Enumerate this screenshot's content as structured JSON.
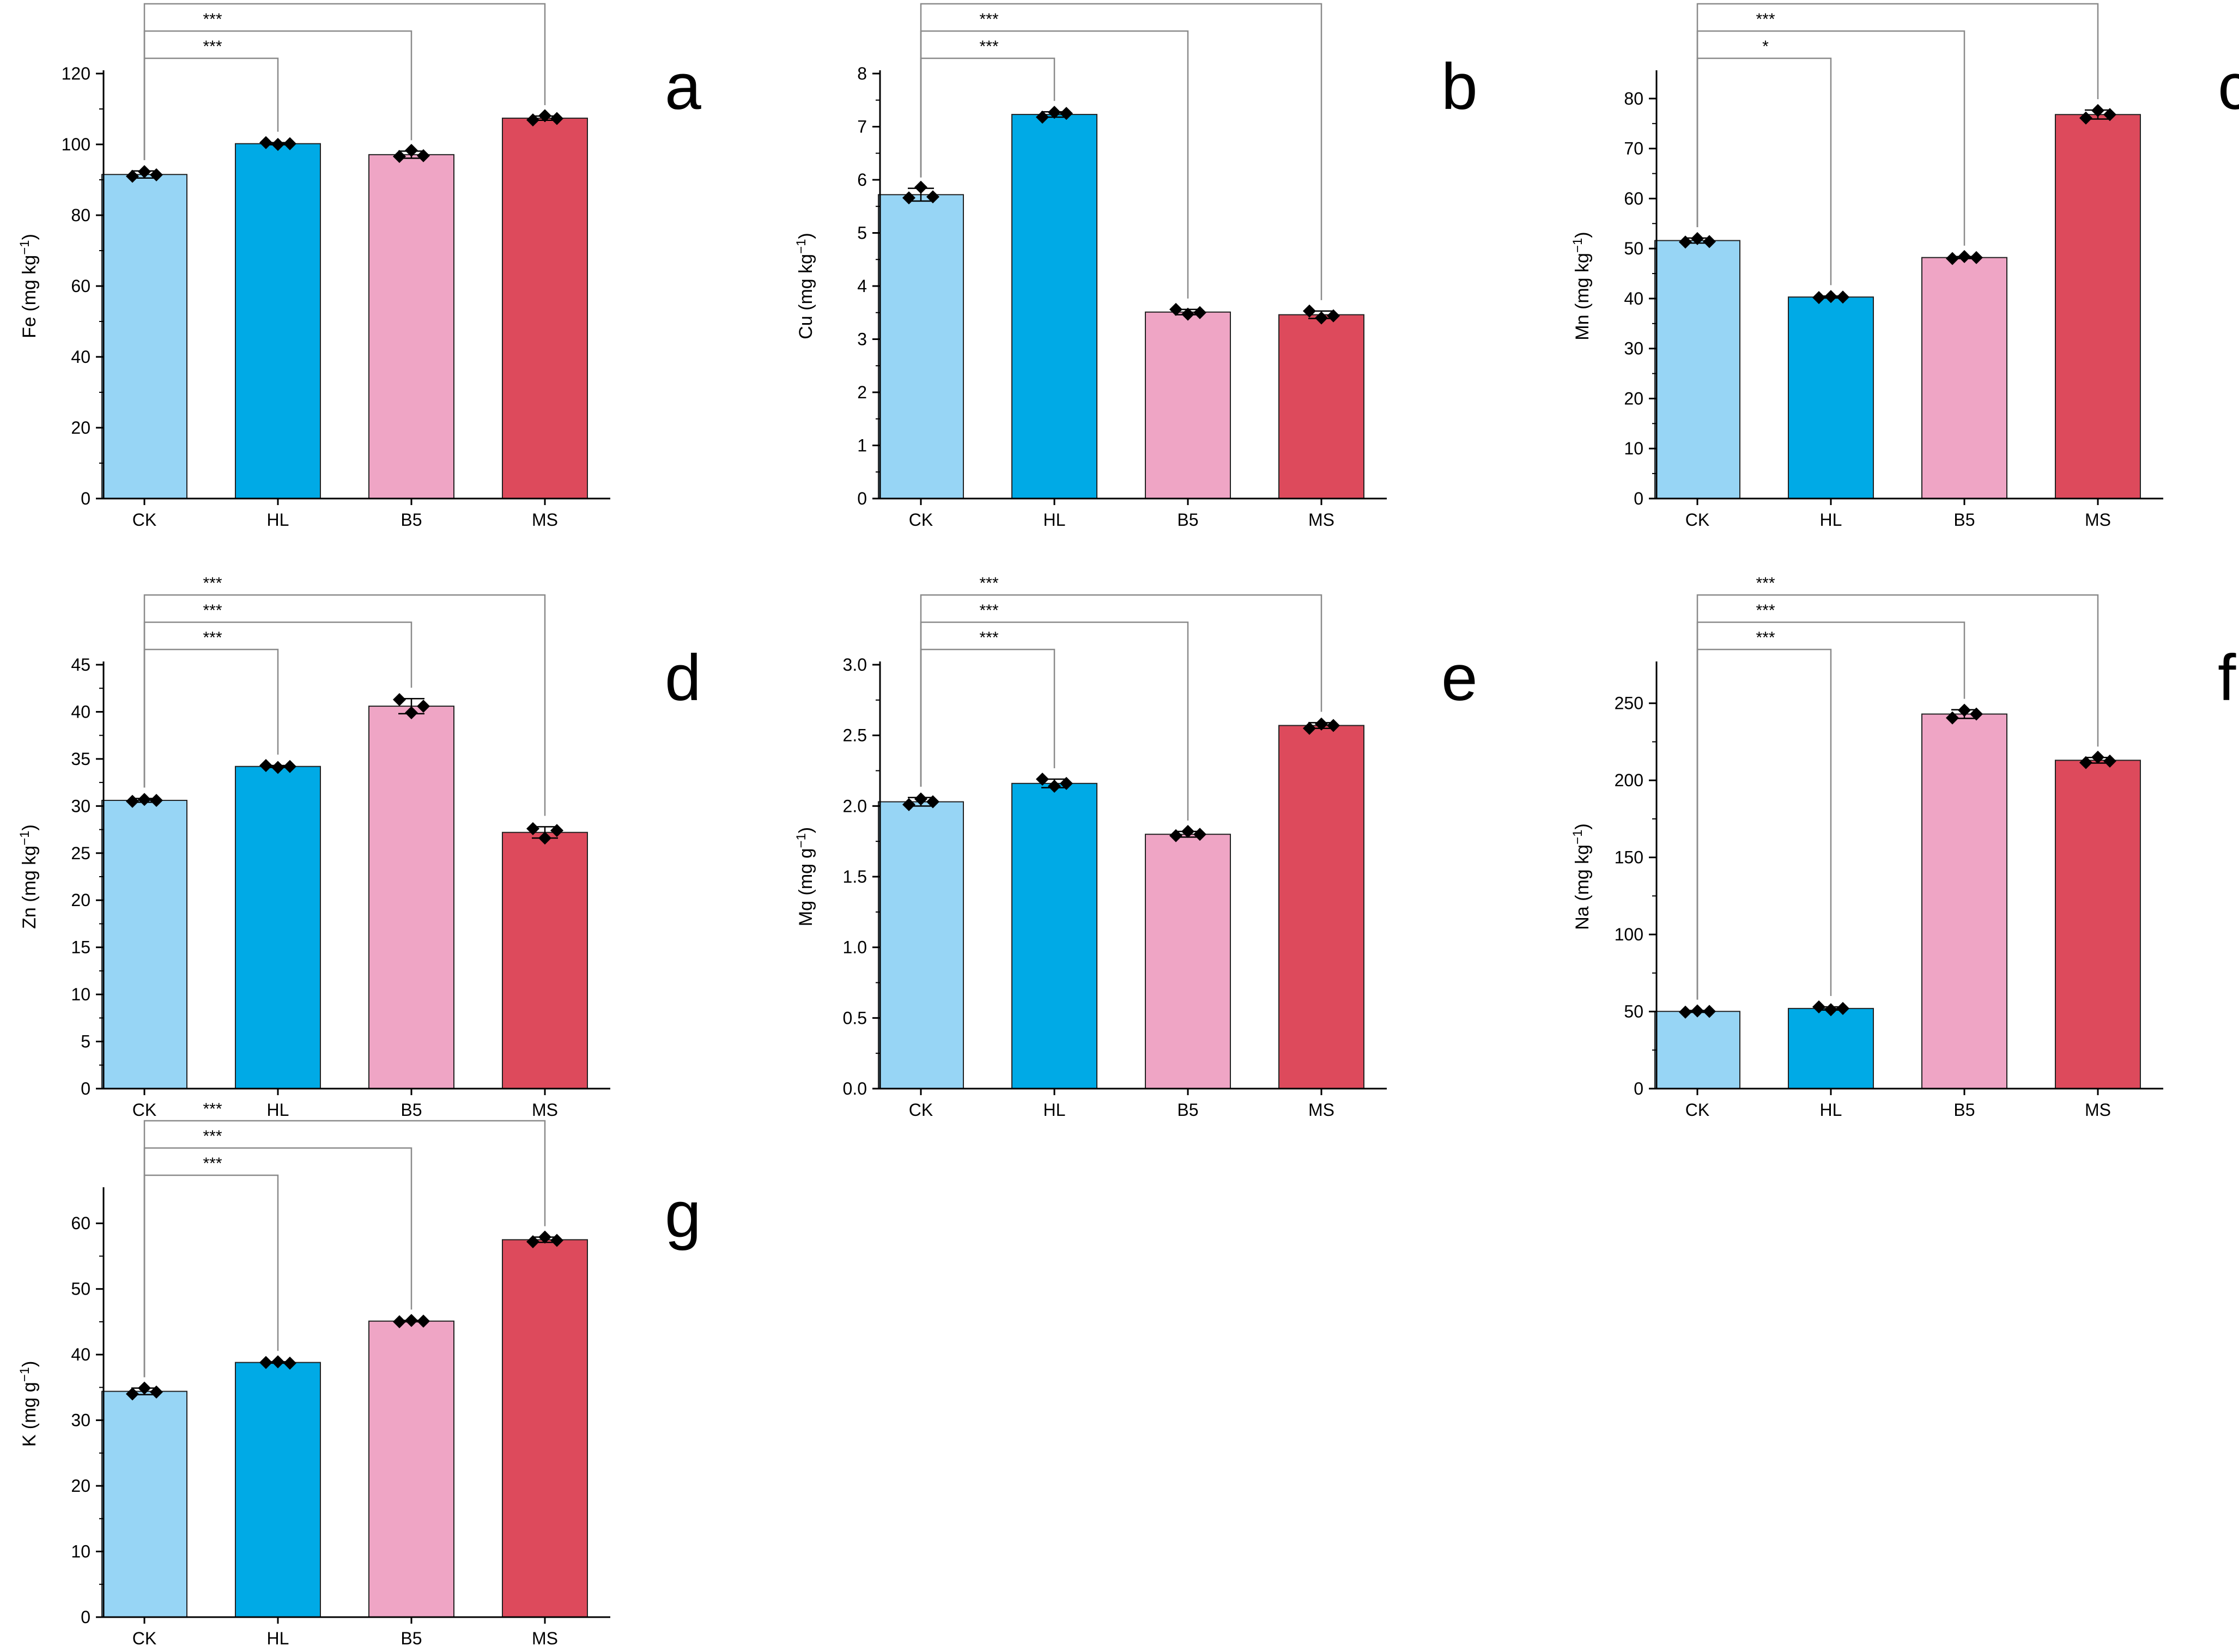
{
  "colors": {
    "CK": "#97d5f5",
    "HL": "#00aae6",
    "B5": "#efa5c5",
    "MS": "#dd4a5c",
    "axis": "#000000",
    "bracket": "#8a8a8a"
  },
  "point_marker": "diamond",
  "chart_data": [
    {
      "type": "bar",
      "panel": "a",
      "ylabel": "Fe (mg kg",
      "ylabel_sup": "−1",
      "ylabel_end": ")",
      "categories": [
        "CK",
        "HL",
        "B5",
        "MS"
      ],
      "values": [
        91.5,
        100.2,
        97.1,
        107.4
      ],
      "errors": [
        1.0,
        0.3,
        1.0,
        0.6
      ],
      "points": [
        [
          91.0,
          92.3,
          91.4
        ],
        [
          100.5,
          100.0,
          100.2
        ],
        [
          96.6,
          98.3,
          96.8
        ],
        [
          106.9,
          108.1,
          107.3
        ]
      ],
      "ylim": [
        0,
        120
      ],
      "yticks": [
        "0",
        "20",
        "40",
        "60",
        "80",
        "100",
        "120"
      ],
      "brackets": [
        {
          "from": "CK",
          "to": "HL",
          "label": "***"
        },
        {
          "from": "CK",
          "to": "B5",
          "label": "***"
        },
        {
          "from": "CK",
          "to": "MS",
          "label": "***"
        }
      ]
    },
    {
      "type": "bar",
      "panel": "b",
      "ylabel": "Cu (mg kg",
      "ylabel_sup": "−1",
      "ylabel_end": ")",
      "categories": [
        "CK",
        "HL",
        "B5",
        "MS"
      ],
      "values": [
        5.72,
        7.23,
        3.51,
        3.46
      ],
      "errors": [
        0.12,
        0.05,
        0.05,
        0.07
      ],
      "points": [
        [
          5.66,
          5.86,
          5.68
        ],
        [
          7.18,
          7.27,
          7.25
        ],
        [
          3.56,
          3.47,
          3.5
        ],
        [
          3.53,
          3.4,
          3.44
        ]
      ],
      "ylim": [
        0,
        8
      ],
      "yticks": [
        "0",
        "1",
        "2",
        "3",
        "4",
        "5",
        "6",
        "7",
        "8"
      ],
      "brackets": [
        {
          "from": "CK",
          "to": "HL",
          "label": "***"
        },
        {
          "from": "CK",
          "to": "B5",
          "label": "***"
        },
        {
          "from": "CK",
          "to": "MS",
          "label": "***"
        }
      ]
    },
    {
      "type": "bar",
      "panel": "c",
      "ylabel": "Mn (mg kg",
      "ylabel_sup": "−1",
      "ylabel_end": ")",
      "categories": [
        "CK",
        "HL",
        "B5",
        "MS"
      ],
      "values": [
        51.6,
        40.3,
        48.2,
        76.8
      ],
      "errors": [
        0.5,
        0.2,
        0.2,
        0.9
      ],
      "points": [
        [
          51.3,
          52.0,
          51.4
        ],
        [
          40.2,
          40.4,
          40.3
        ],
        [
          48.0,
          48.4,
          48.2
        ],
        [
          76.1,
          77.6,
          76.8
        ]
      ],
      "ylim": [
        0,
        85
      ],
      "yticks": [
        "0",
        "10",
        "20",
        "30",
        "40",
        "50",
        "60",
        "70",
        "80"
      ],
      "brackets": [
        {
          "from": "CK",
          "to": "HL",
          "label": "*"
        },
        {
          "from": "CK",
          "to": "B5",
          "label": "***"
        },
        {
          "from": "CK",
          "to": "MS",
          "label": "***"
        }
      ]
    },
    {
      "type": "bar",
      "panel": "d",
      "ylabel": "Zn (mg kg",
      "ylabel_sup": "−1",
      "ylabel_end": ")",
      "categories": [
        "CK",
        "HL",
        "B5",
        "MS"
      ],
      "values": [
        30.6,
        34.2,
        40.6,
        27.2
      ],
      "errors": [
        0.2,
        0.1,
        0.8,
        0.6
      ],
      "points": [
        [
          30.5,
          30.7,
          30.6
        ],
        [
          34.3,
          34.1,
          34.2
        ],
        [
          41.3,
          39.9,
          40.6
        ],
        [
          27.6,
          26.6,
          27.4
        ]
      ],
      "ylim": [
        0,
        45
      ],
      "yticks": [
        "0",
        "5",
        "10",
        "15",
        "20",
        "25",
        "30",
        "35",
        "40",
        "45"
      ],
      "brackets": [
        {
          "from": "CK",
          "to": "HL",
          "label": "***"
        },
        {
          "from": "CK",
          "to": "B5",
          "label": "***"
        },
        {
          "from": "CK",
          "to": "MS",
          "label": "***"
        }
      ]
    },
    {
      "type": "bar",
      "panel": "e",
      "ylabel": "Mg (mg g",
      "ylabel_sup": "−1",
      "ylabel_end": ")",
      "categories": [
        "CK",
        "HL",
        "B5",
        "MS"
      ],
      "values": [
        2.03,
        2.16,
        1.8,
        2.57
      ],
      "errors": [
        0.03,
        0.03,
        0.02,
        0.02
      ],
      "points": [
        [
          2.01,
          2.05,
          2.03
        ],
        [
          2.19,
          2.14,
          2.16
        ],
        [
          1.79,
          1.82,
          1.8
        ],
        [
          2.55,
          2.58,
          2.57
        ]
      ],
      "ylim": [
        0,
        3.0
      ],
      "yticks": [
        "0.0",
        "0.5",
        "1.0",
        "1.5",
        "2.0",
        "2.5",
        "3.0"
      ],
      "brackets": [
        {
          "from": "CK",
          "to": "HL",
          "label": "***"
        },
        {
          "from": "CK",
          "to": "B5",
          "label": "***"
        },
        {
          "from": "CK",
          "to": "MS",
          "label": "***"
        }
      ]
    },
    {
      "type": "bar",
      "panel": "f",
      "ylabel": "Na (mg kg",
      "ylabel_sup": "−1",
      "ylabel_end": ")",
      "categories": [
        "CK",
        "HL",
        "B5",
        "MS"
      ],
      "values": [
        50.1,
        52.0,
        243.0,
        213.0
      ],
      "errors": [
        0.6,
        1.0,
        2.8,
        1.8
      ],
      "points": [
        [
          49.6,
          50.4,
          50.1
        ],
        [
          53.0,
          51.2,
          52.0
        ],
        [
          240.5,
          245.5,
          243.0
        ],
        [
          211.5,
          215.0,
          212.5
        ]
      ],
      "ylim": [
        0,
        275
      ],
      "yticks": [
        "0",
        "50",
        "100",
        "150",
        "200",
        "250"
      ],
      "brackets": [
        {
          "from": "CK",
          "to": "HL",
          "label": "***"
        },
        {
          "from": "CK",
          "to": "B5",
          "label": "***"
        },
        {
          "from": "CK",
          "to": "MS",
          "label": "***"
        }
      ]
    },
    {
      "type": "bar",
      "panel": "g",
      "ylabel": "K (mg g",
      "ylabel_sup": "−1",
      "ylabel_end": ")",
      "categories": [
        "CK",
        "HL",
        "B5",
        "MS"
      ],
      "values": [
        34.4,
        38.8,
        45.1,
        57.5
      ],
      "errors": [
        0.5,
        0.1,
        0.1,
        0.4
      ],
      "points": [
        [
          34.0,
          34.9,
          34.3
        ],
        [
          38.8,
          38.9,
          38.7
        ],
        [
          45.0,
          45.2,
          45.1
        ],
        [
          57.2,
          57.9,
          57.4
        ]
      ],
      "ylim": [
        0,
        65
      ],
      "yticks": [
        "0",
        "10",
        "20",
        "30",
        "40",
        "50",
        "60"
      ],
      "brackets": [
        {
          "from": "CK",
          "to": "HL",
          "label": "***"
        },
        {
          "from": "CK",
          "to": "B5",
          "label": "***"
        },
        {
          "from": "CK",
          "to": "MS",
          "label": "***"
        }
      ]
    }
  ]
}
